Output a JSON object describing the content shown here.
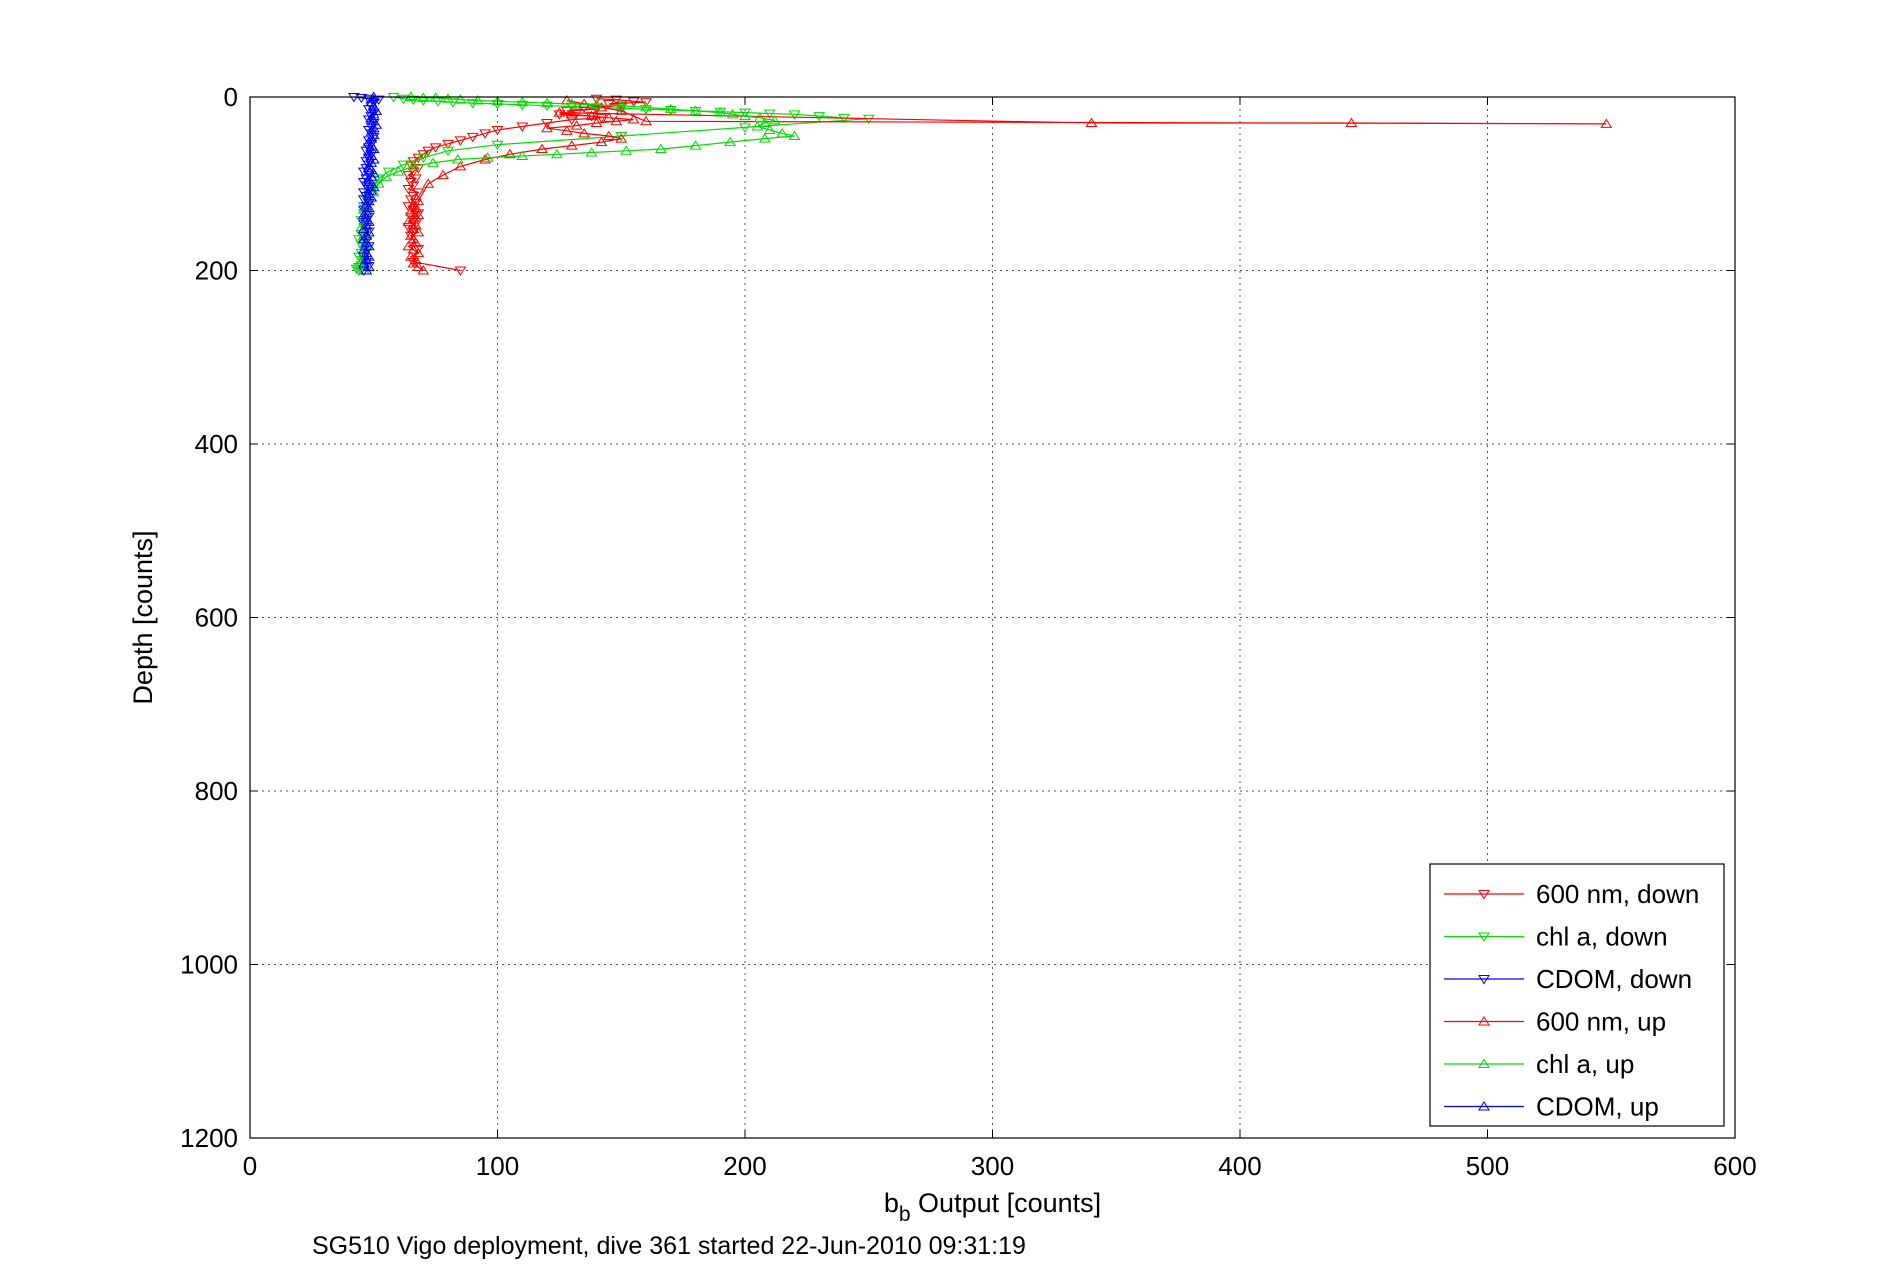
{
  "chart_data": {
    "type": "line",
    "xlabel_main": "b",
    "xlabel_sub": "b",
    "xlabel_rest": " Output [counts]",
    "ylabel": "Depth [counts]",
    "caption": "SG510 Vigo deployment, dive 361 started 22-Jun-2010 09:31:19",
    "xlim": [
      0,
      600
    ],
    "ylim": [
      0,
      1200
    ],
    "y_reversed": true,
    "grid": true,
    "legend_position": "bottom-right",
    "x_ticks": [
      "0",
      "100",
      "200",
      "300",
      "400",
      "500",
      "600"
    ],
    "y_ticks": [
      "0",
      "200",
      "400",
      "600",
      "800",
      "1000",
      "1200"
    ],
    "series": [
      {
        "name": "600 nm, down",
        "color": "#ff0000",
        "marker": "triangle-down",
        "x": [
          140,
          148,
          155,
          160,
          145,
          150,
          135,
          140,
          128,
          132,
          125,
          138,
          142,
          130,
          120,
          110,
          100,
          95,
          90,
          85,
          80,
          75,
          72,
          70,
          68,
          66,
          65,
          68,
          66,
          64,
          67,
          65,
          66,
          64,
          68,
          66,
          65,
          67,
          64,
          66,
          68,
          65,
          66,
          67,
          64,
          66,
          65,
          68,
          66,
          85
        ],
        "y": [
          2,
          3,
          5,
          6,
          8,
          10,
          12,
          14,
          16,
          18,
          20,
          22,
          24,
          26,
          30,
          34,
          38,
          42,
          46,
          50,
          54,
          58,
          62,
          66,
          70,
          74,
          78,
          82,
          86,
          90,
          94,
          98,
          102,
          106,
          110,
          114,
          118,
          122,
          126,
          130,
          134,
          138,
          142,
          146,
          150,
          155,
          160,
          175,
          190,
          200
        ]
      },
      {
        "name": "chl a, down",
        "color": "#00dd00",
        "marker": "triangle-down",
        "x": [
          58,
          62,
          66,
          70,
          76,
          82,
          90,
          100,
          110,
          120,
          130,
          140,
          150,
          160,
          170,
          180,
          190,
          200,
          210,
          220,
          230,
          240,
          250,
          200,
          150,
          100,
          80,
          70,
          62,
          56,
          52,
          50,
          48,
          47,
          46,
          46,
          45,
          46,
          45,
          44,
          45,
          46,
          45,
          44,
          45,
          46,
          45,
          44,
          43,
          44
        ],
        "y": [
          0,
          2,
          3,
          4,
          5,
          6,
          7,
          8,
          9,
          10,
          11,
          12,
          13,
          14,
          15,
          16,
          17,
          18,
          19,
          20,
          22,
          24,
          25,
          35,
          45,
          55,
          62,
          70,
          78,
          86,
          94,
          102,
          110,
          118,
          126,
          134,
          142,
          150,
          158,
          164,
          170,
          176,
          180,
          184,
          188,
          191,
          194,
          196,
          198,
          200
        ]
      },
      {
        "name": "CDOM, down",
        "color": "#0000ff",
        "marker": "triangle-down",
        "x": [
          42,
          45,
          48,
          52,
          50,
          49,
          48,
          50,
          49,
          48,
          50,
          49,
          48,
          49,
          50,
          48,
          49,
          48,
          47,
          49,
          48,
          47,
          48,
          47,
          46,
          48,
          47,
          46,
          47,
          48,
          46,
          47,
          46,
          48,
          47,
          46,
          47,
          48,
          47,
          46,
          47,
          48,
          46,
          47,
          48,
          47,
          46,
          47,
          48,
          46
        ],
        "y": [
          0,
          1,
          2,
          3,
          6,
          10,
          14,
          18,
          22,
          26,
          30,
          34,
          38,
          42,
          46,
          50,
          54,
          58,
          62,
          66,
          70,
          74,
          78,
          82,
          86,
          90,
          94,
          98,
          102,
          106,
          110,
          114,
          118,
          122,
          126,
          130,
          134,
          138,
          142,
          146,
          150,
          155,
          160,
          166,
          172,
          178,
          184,
          190,
          195,
          200
        ]
      },
      {
        "name": "600 nm, up",
        "color": "#ff0000",
        "marker": "triangle-up",
        "x": [
          70,
          68,
          66,
          67,
          65,
          68,
          66,
          64,
          67,
          66,
          65,
          68,
          66,
          67,
          64,
          66,
          68,
          65,
          67,
          66,
          68,
          72,
          78,
          85,
          95,
          105,
          118,
          130,
          142,
          150,
          145,
          135,
          128,
          120,
          132,
          140,
          148,
          155,
          145,
          138,
          130,
          125,
          340,
          445,
          548,
          160,
          150,
          142,
          135,
          128
        ],
        "y": [
          200,
          196,
          192,
          188,
          184,
          180,
          176,
          172,
          168,
          164,
          160,
          156,
          152,
          148,
          144,
          140,
          136,
          132,
          128,
          124,
          120,
          100,
          90,
          80,
          72,
          66,
          60,
          56,
          52,
          48,
          45,
          42,
          39,
          36,
          33,
          30,
          28,
          26,
          24,
          22,
          20,
          18,
          30,
          30,
          31,
          28,
          16,
          12,
          8,
          4
        ]
      },
      {
        "name": "chl a, up",
        "color": "#00dd00",
        "marker": "triangle-up",
        "x": [
          46,
          45,
          46,
          47,
          46,
          45,
          47,
          46,
          48,
          50,
          52,
          55,
          60,
          66,
          74,
          84,
          96,
          110,
          124,
          138,
          152,
          166,
          180,
          194,
          208,
          220,
          215,
          210,
          205,
          208,
          212,
          206,
          200,
          195,
          190,
          180,
          170,
          160,
          150,
          140,
          130,
          120,
          110,
          100,
          92,
          85,
          80,
          75,
          70,
          65
        ],
        "y": [
          200,
          190,
          180,
          170,
          160,
          150,
          140,
          130,
          120,
          110,
          100,
          92,
          86,
          80,
          76,
          72,
          70,
          68,
          66,
          64,
          62,
          60,
          56,
          52,
          48,
          45,
          42,
          38,
          34,
          30,
          27,
          24,
          22,
          20,
          18,
          16,
          14,
          12,
          10,
          9,
          8,
          7,
          6,
          5,
          4,
          3,
          2,
          1,
          1,
          0
        ]
      },
      {
        "name": "CDOM, up",
        "color": "#0000ff",
        "marker": "triangle-up",
        "x": [
          47,
          48,
          46,
          47,
          48,
          47,
          46,
          48,
          47,
          46,
          47,
          48,
          46,
          47,
          48,
          47,
          46,
          47,
          48,
          47,
          48,
          49,
          48,
          49,
          50,
          49,
          48,
          49,
          50,
          49,
          48,
          49,
          50,
          49,
          48,
          50,
          49,
          48,
          49,
          50,
          49,
          50,
          51,
          50,
          49,
          50,
          51,
          50,
          49,
          50
        ],
        "y": [
          200,
          196,
          192,
          188,
          184,
          180,
          176,
          172,
          168,
          164,
          160,
          156,
          152,
          148,
          144,
          140,
          136,
          132,
          128,
          124,
          120,
          116,
          112,
          108,
          104,
          100,
          96,
          92,
          88,
          84,
          80,
          76,
          72,
          68,
          64,
          60,
          56,
          52,
          48,
          44,
          40,
          36,
          32,
          28,
          24,
          20,
          16,
          12,
          6,
          0
        ]
      }
    ]
  }
}
